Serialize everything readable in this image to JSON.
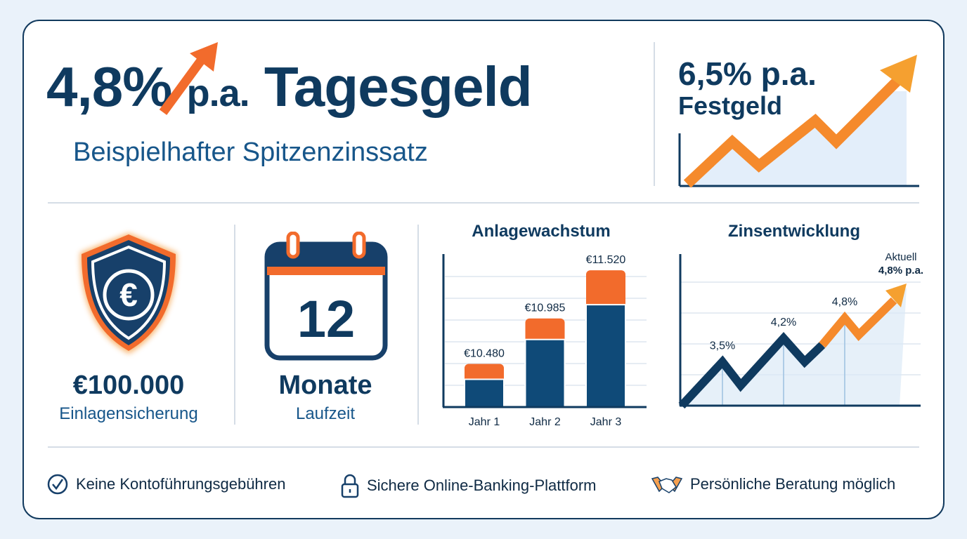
{
  "hero": {
    "rate": "4,8%",
    "pa": "p.a.",
    "product": "Tagesgeld",
    "subtitle": "Beispielhafter Spitzenzinssatz"
  },
  "festgeld": {
    "rate": "6,5% p.a.",
    "product": "Festgeld"
  },
  "deposit": {
    "amount": "€100.000",
    "label": "Einlagensicherung",
    "icon": "euro-shield-icon"
  },
  "term": {
    "months": "12",
    "unit": "Monate",
    "label": "Laufzeit",
    "icon": "calendar-icon"
  },
  "colors": {
    "navy": "#0f3a5f",
    "blue": "#17568a",
    "orange": "#f26b2c",
    "light_orange": "#f5a030",
    "fill": "#dbe9f7"
  },
  "chart_data": [
    {
      "type": "bar",
      "title": "Anlagewachstum",
      "categories": [
        "Jahr 1",
        "Jahr 2",
        "Jahr 3"
      ],
      "values": [
        10480,
        10985,
        11520
      ],
      "data_labels": [
        "€10.480",
        "€10.985",
        "€11.520"
      ],
      "grid": true
    },
    {
      "type": "line",
      "title": "Zinsentwicklung",
      "series": [
        {
          "values": [
            2.2,
            3.5,
            2.8,
            4.2,
            3.5,
            4.0,
            4.8,
            4.3,
            5.7
          ]
        }
      ],
      "point_labels": [
        "3,5%",
        "4,2%",
        "4,8%"
      ],
      "annotation": [
        "Aktuell",
        "4,8% p.a."
      ],
      "grid": true
    }
  ],
  "footer": [
    {
      "icon": "check-circle-icon",
      "label": "Keine Kontoführungsgebühren"
    },
    {
      "icon": "lock-icon",
      "label": "Sichere Online-Banking-Plattform"
    },
    {
      "icon": "handshake-icon",
      "label": "Persönliche Beratung möglich"
    }
  ]
}
